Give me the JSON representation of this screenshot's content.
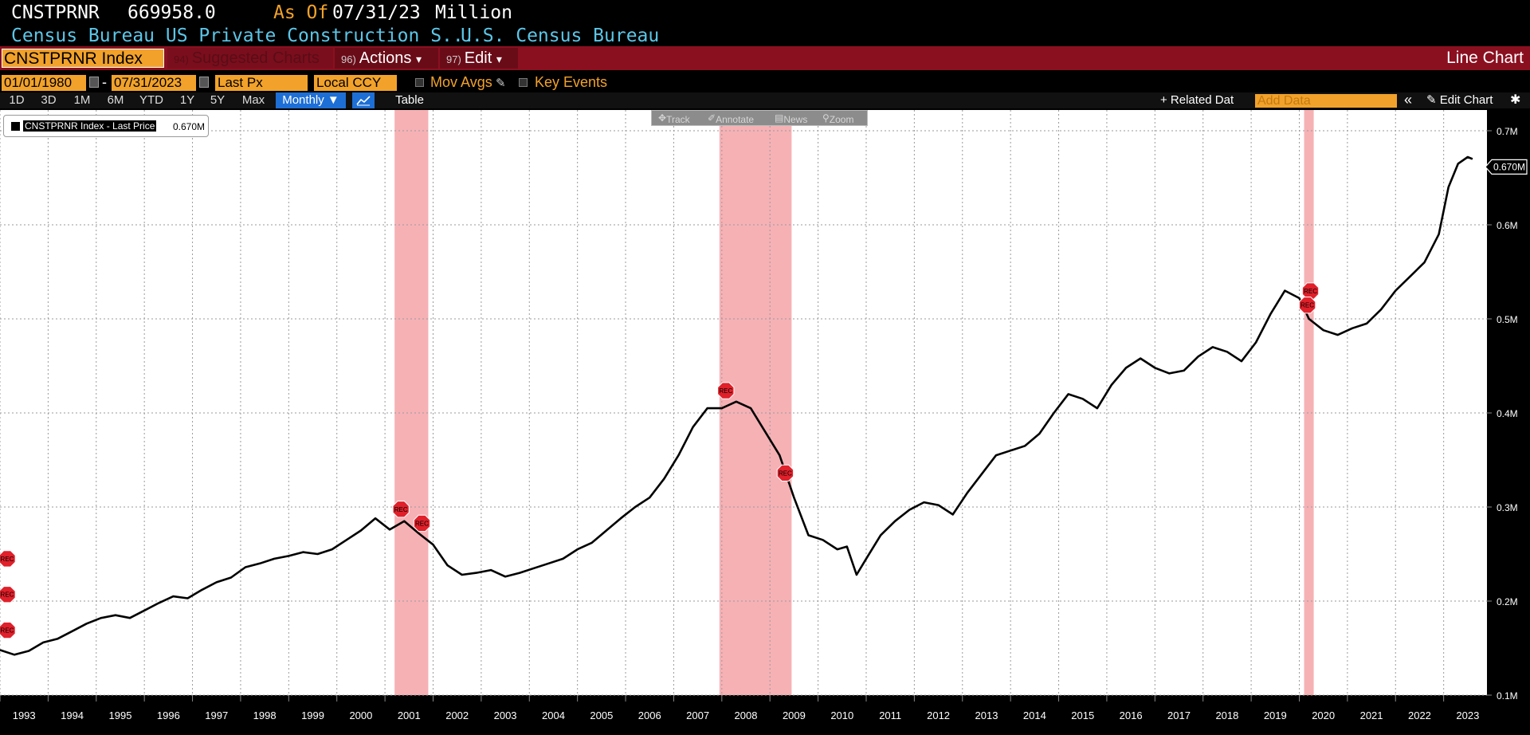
{
  "header": {
    "ticker": "CNSTPRNR",
    "last_value": "669958.0",
    "as_of_label": "As Of",
    "as_of_date": "07/31/23",
    "units": "Million",
    "description": "Census Bureau US Private Construction S...",
    "source": "U.S. Census Bureau"
  },
  "command_bar": {
    "ticker_input": "CNSTPRNR Index",
    "suggested": {
      "num": "94)",
      "label": "Suggested Charts"
    },
    "actions": {
      "num": "96)",
      "label": "Actions",
      "arrow": "▾"
    },
    "edit": {
      "num": "97)",
      "label": "Edit",
      "arrow": "▾"
    },
    "chart_type": "Line Chart"
  },
  "params": {
    "start_date": "01/01/1980",
    "dash": "-",
    "end_date": "07/31/2023",
    "field": "Last Px",
    "currency": "Local CCY",
    "mov_avgs": "Mov Avgs",
    "key_events": "Key Events"
  },
  "periods": {
    "buttons": [
      "1D",
      "3D",
      "1M",
      "6M",
      "YTD",
      "1Y",
      "5Y",
      "Max"
    ],
    "frequency": "Monthly ▼",
    "table": "Table",
    "related_data": "+ Related Dat",
    "add_data_placeholder": "Add Data",
    "collapse": "«",
    "edit_chart": "✎ Edit Chart",
    "settings": "✱"
  },
  "mini_toolbar": [
    "Track",
    "Annotate",
    "News",
    "Zoom"
  ],
  "legend": {
    "name": "CNSTPRNR Index - Last Price",
    "value": "0.670M"
  },
  "colors": {
    "line": "#000000",
    "recession": "#f5a3a8",
    "rec_marker": "#e0202a",
    "accent": "#f2a22a",
    "bar": "#8a1020"
  },
  "chart_data": {
    "type": "line",
    "x_unit": "year",
    "x_range": [
      1993.0,
      2023.9
    ],
    "ylim": [
      0.1,
      0.7
    ],
    "yticks": [
      "0.1M",
      "0.2M",
      "0.3M",
      "0.4M",
      "0.5M",
      "0.6M",
      "0.7M"
    ],
    "xticks": [
      "1993",
      "1994",
      "1995",
      "1996",
      "1997",
      "1998",
      "1999",
      "2000",
      "2001",
      "2002",
      "2003",
      "2004",
      "2005",
      "2006",
      "2007",
      "2008",
      "2009",
      "2010",
      "2011",
      "2012",
      "2013",
      "2014",
      "2015",
      "2016",
      "2017",
      "2018",
      "2019",
      "2020",
      "2021",
      "2022",
      "2023"
    ],
    "last_value_label": "0.670M",
    "grid": true,
    "recessions": [
      [
        2001.2,
        2001.9
      ],
      [
        2007.95,
        2009.45
      ],
      [
        2020.1,
        2020.3
      ]
    ],
    "rec_label": "REC",
    "series": [
      {
        "name": "CNSTPRNR Index - Last Price",
        "x": [
          1993.0,
          1993.3,
          1993.6,
          1993.9,
          1994.2,
          1994.5,
          1994.8,
          1995.1,
          1995.4,
          1995.7,
          1996.0,
          1996.3,
          1996.6,
          1996.9,
          1997.2,
          1997.5,
          1997.8,
          1998.1,
          1998.4,
          1998.7,
          1999.0,
          1999.3,
          1999.6,
          1999.9,
          2000.2,
          2000.5,
          2000.8,
          2001.1,
          2001.4,
          2001.7,
          2002.0,
          2002.3,
          2002.6,
          2002.9,
          2003.2,
          2003.5,
          2003.8,
          2004.1,
          2004.4,
          2004.7,
          2005.0,
          2005.3,
          2005.6,
          2005.9,
          2006.2,
          2006.5,
          2006.8,
          2007.1,
          2007.4,
          2007.7,
          2008.0,
          2008.3,
          2008.6,
          2008.9,
          2009.2,
          2009.5,
          2009.8,
          2010.1,
          2010.4,
          2010.6,
          2010.8,
          2011.0,
          2011.3,
          2011.6,
          2011.9,
          2012.2,
          2012.5,
          2012.8,
          2013.1,
          2013.4,
          2013.7,
          2014.0,
          2014.3,
          2014.6,
          2014.9,
          2015.2,
          2015.5,
          2015.8,
          2016.1,
          2016.4,
          2016.7,
          2017.0,
          2017.3,
          2017.6,
          2017.9,
          2018.2,
          2018.5,
          2018.8,
          2019.1,
          2019.4,
          2019.7,
          2020.0,
          2020.2,
          2020.5,
          2020.8,
          2021.1,
          2021.4,
          2021.7,
          2022.0,
          2022.3,
          2022.6,
          2022.9,
          2023.1,
          2023.3,
          2023.5,
          2023.6
        ],
        "y": [
          0.148,
          0.143,
          0.147,
          0.156,
          0.16,
          0.168,
          0.176,
          0.182,
          0.185,
          0.182,
          0.19,
          0.198,
          0.205,
          0.203,
          0.212,
          0.22,
          0.225,
          0.236,
          0.24,
          0.245,
          0.248,
          0.252,
          0.25,
          0.255,
          0.265,
          0.275,
          0.288,
          0.276,
          0.285,
          0.272,
          0.26,
          0.238,
          0.228,
          0.23,
          0.233,
          0.226,
          0.23,
          0.235,
          0.24,
          0.245,
          0.255,
          0.262,
          0.275,
          0.288,
          0.3,
          0.31,
          0.33,
          0.355,
          0.385,
          0.405,
          0.405,
          0.412,
          0.405,
          0.38,
          0.355,
          0.31,
          0.27,
          0.265,
          0.255,
          0.258,
          0.228,
          0.245,
          0.27,
          0.285,
          0.297,
          0.305,
          0.302,
          0.292,
          0.315,
          0.335,
          0.355,
          0.36,
          0.365,
          0.378,
          0.4,
          0.42,
          0.415,
          0.405,
          0.43,
          0.448,
          0.458,
          0.448,
          0.442,
          0.445,
          0.46,
          0.47,
          0.465,
          0.455,
          0.475,
          0.505,
          0.53,
          0.522,
          0.5,
          0.488,
          0.483,
          0.49,
          0.495,
          0.51,
          0.53,
          0.545,
          0.56,
          0.59,
          0.64,
          0.665,
          0.672,
          0.67
        ]
      }
    ]
  }
}
